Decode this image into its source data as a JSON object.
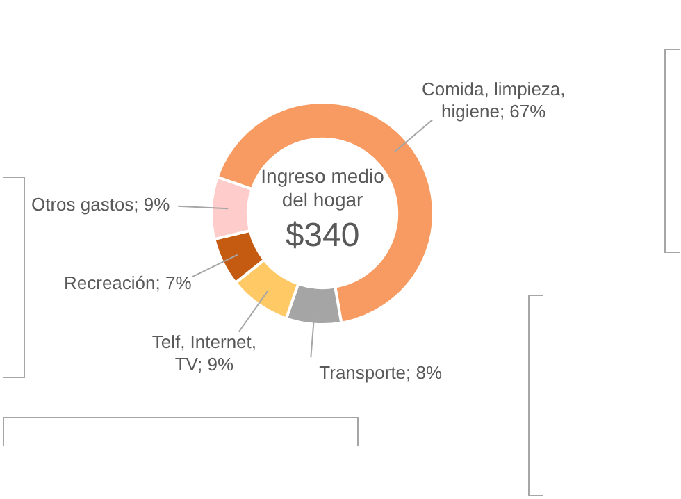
{
  "chart_data": {
    "type": "donut",
    "title": "Ingreso medio del hogar",
    "subtitle": "$340",
    "categories": [
      "Comida, limpieza, higiene",
      "Transporte",
      "Telf, Internet, TV",
      "Recreación",
      "Otros gastos"
    ],
    "values": [
      67,
      8,
      9,
      7,
      9
    ],
    "colors": [
      "#f79b62",
      "#a5a5a5",
      "#ffc966",
      "#c55a11",
      "#ffcccc"
    ],
    "value_labels": [
      "67%",
      "8%",
      "9%",
      "7%",
      "9%"
    ],
    "legend": false
  }
}
